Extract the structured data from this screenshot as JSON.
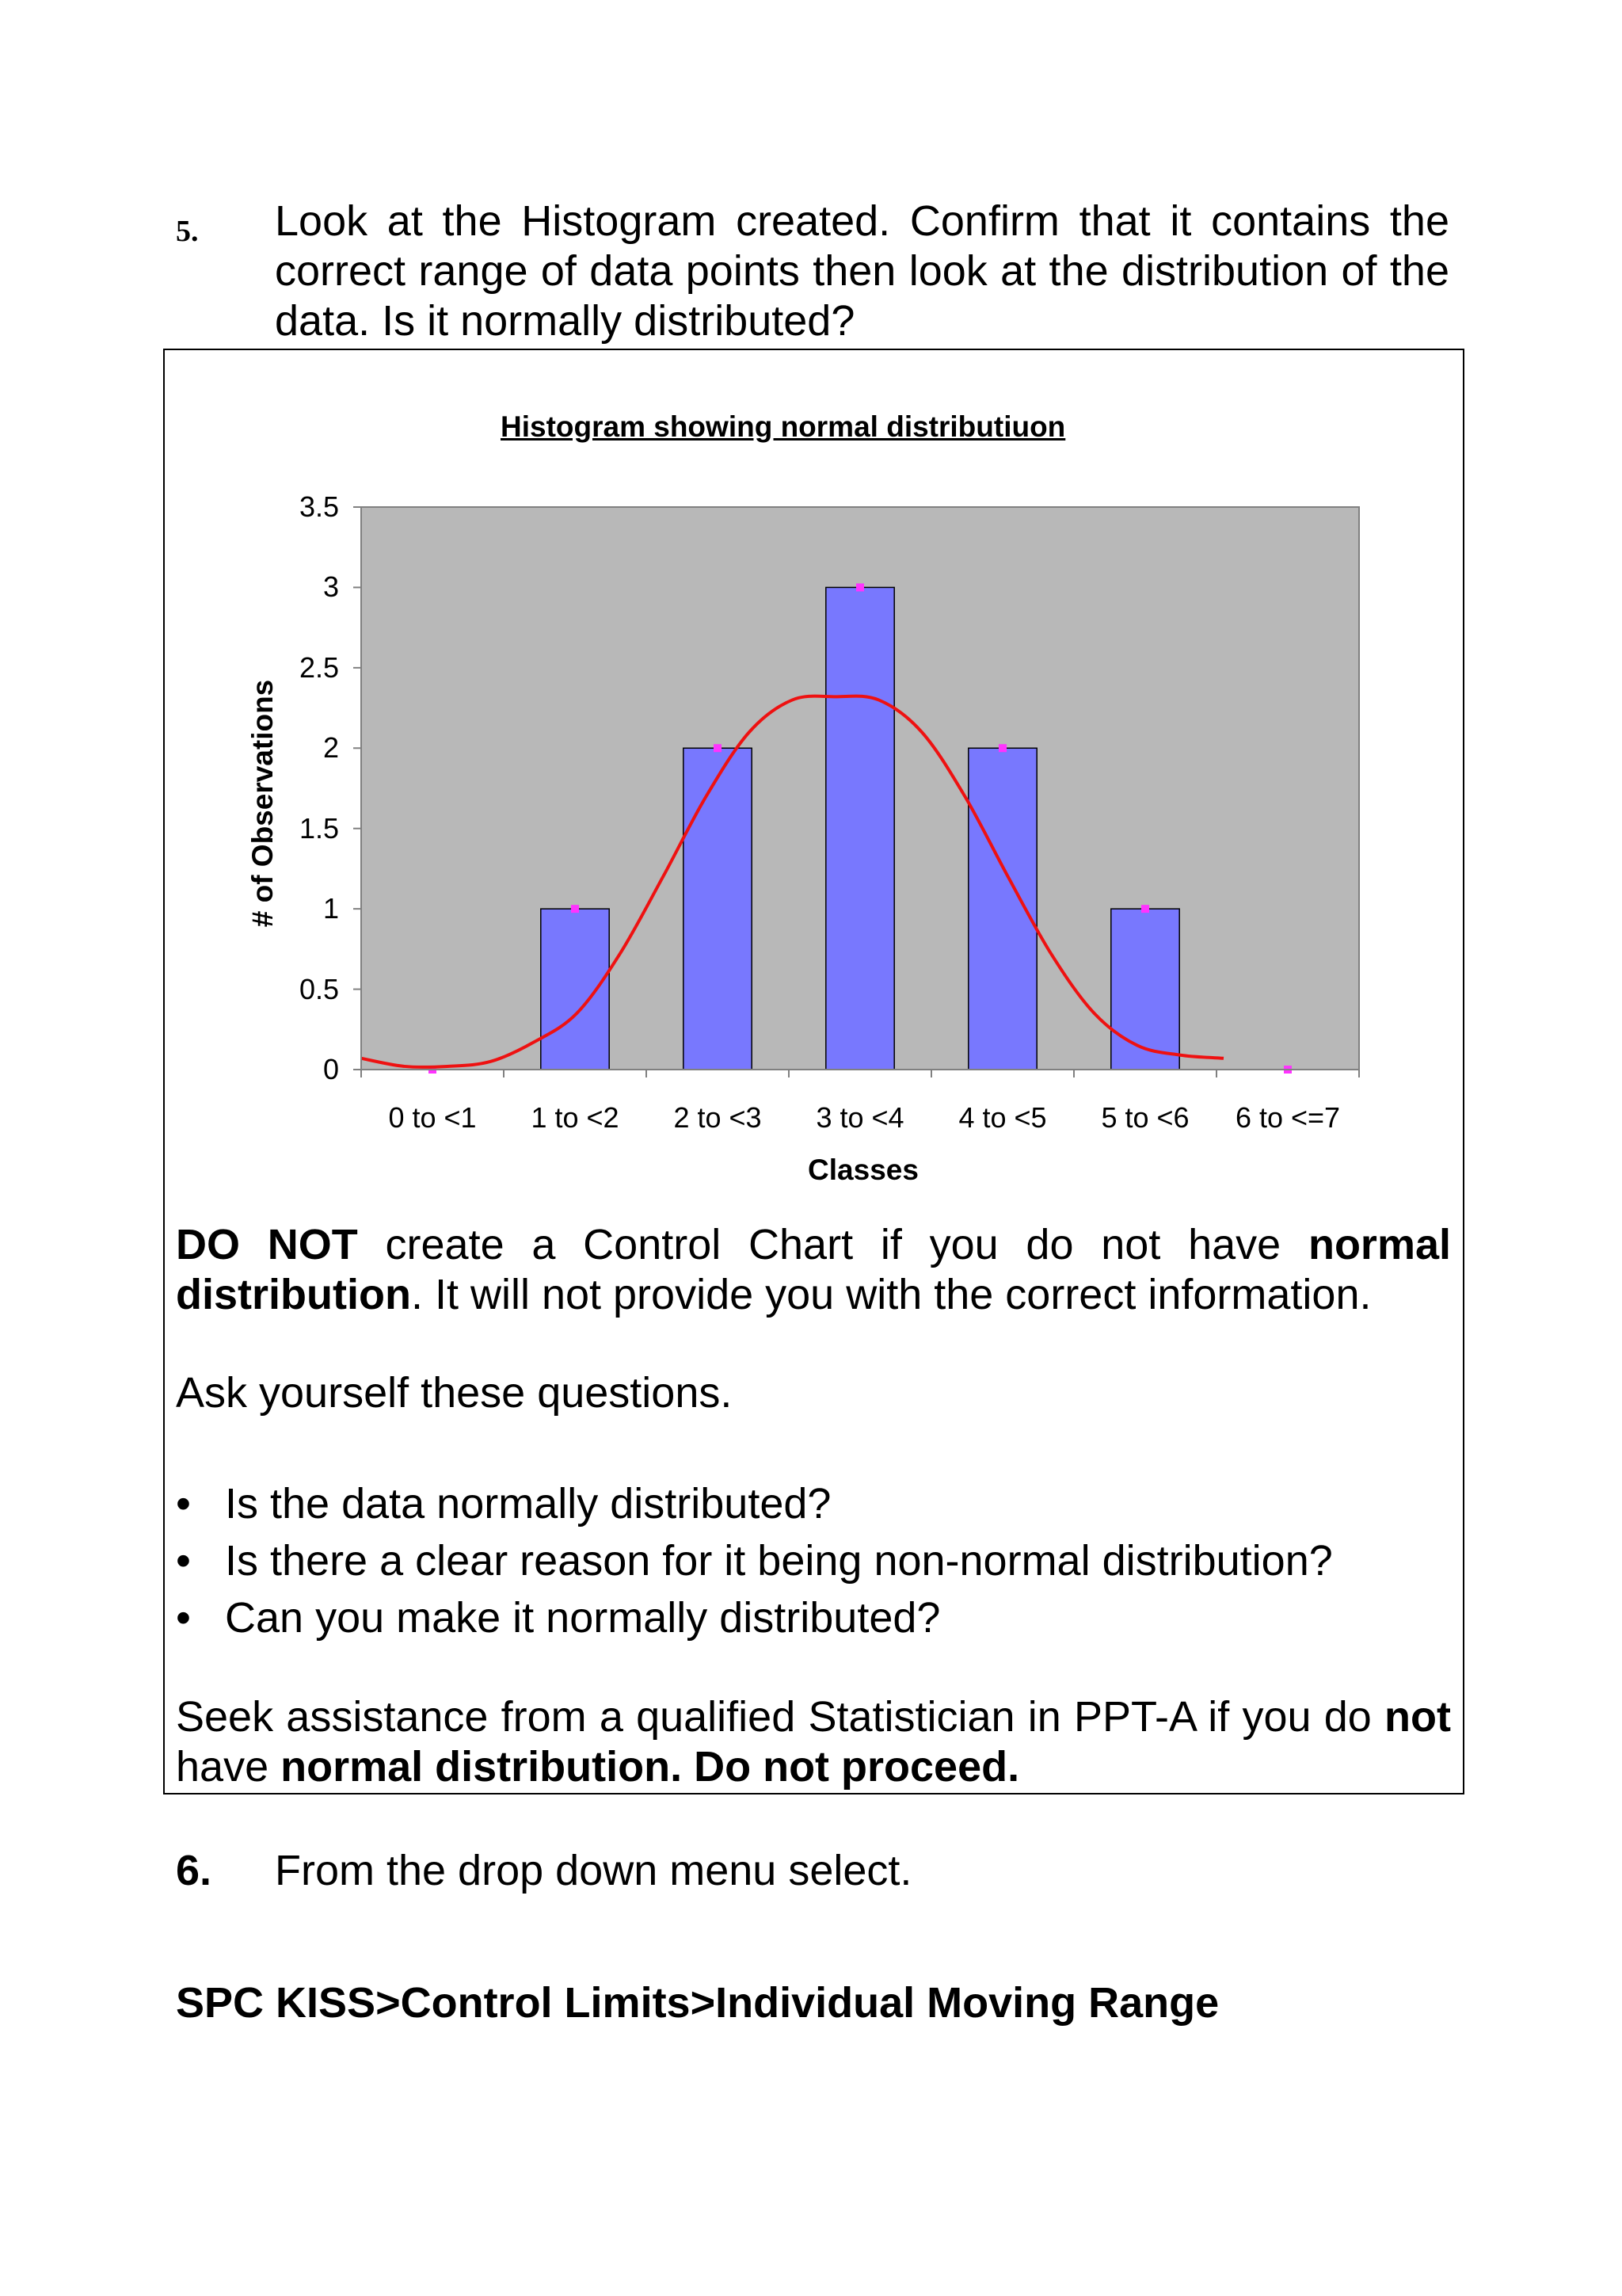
{
  "step5": {
    "number": "5.",
    "text": "Look at the Histogram created. Confirm that it contains the correct range of data points then look at the distribution of the data. Is it normally distributed?"
  },
  "chart_data": {
    "type": "bar",
    "title": "Histogram showing normal distributiuon",
    "xlabel": "Classes",
    "ylabel": "# of Observations",
    "categories": [
      "0 to <1",
      "1 to <2",
      "2 to <3",
      "3 to <4",
      "4 to <5",
      "5 to <6",
      "6 to <=7"
    ],
    "values": [
      0,
      1,
      2,
      3,
      2,
      1,
      0
    ],
    "ylim": [
      0,
      3.5
    ],
    "yticks": [
      "0",
      "0.5",
      "1",
      "1.5",
      "2",
      "2.5",
      "3",
      "3.5"
    ],
    "curve": [
      0.07,
      0.02,
      0.02,
      0.05,
      0.17,
      0.35,
      0.72,
      1.2,
      1.7,
      2.1,
      2.3,
      2.32,
      2.3,
      2.1,
      1.7,
      1.2,
      0.72,
      0.35,
      0.15,
      0.09,
      0.07
    ],
    "grid": false,
    "colors": {
      "plot_background": "#b8b8b8",
      "bar_fill": "#7878fe",
      "curve": "#ee1111",
      "point_marker": "#ff33ff"
    }
  },
  "warning": {
    "bold_lead": "DO NOT",
    "part1": " create a Control Chart if you do not have ",
    "bold_mid": "normal distribution",
    "part2": ". It will not provide you with the correct information."
  },
  "ask": "Ask yourself these questions.",
  "questions": [
    "Is the data normally distributed?",
    "Is there a clear reason for it being non-normal distribution?",
    "Can you make it normally distributed?"
  ],
  "seek": {
    "part1": "Seek assistance from a qualified Statistician in PPT-A if you do ",
    "bold1": "not",
    "part2": " have ",
    "bold2": "normal distribution. Do not proceed."
  },
  "step6": {
    "number": "6.",
    "text": "From the drop down menu select."
  },
  "menu_path": "SPC KISS>Control Limits>Individual Moving Range"
}
